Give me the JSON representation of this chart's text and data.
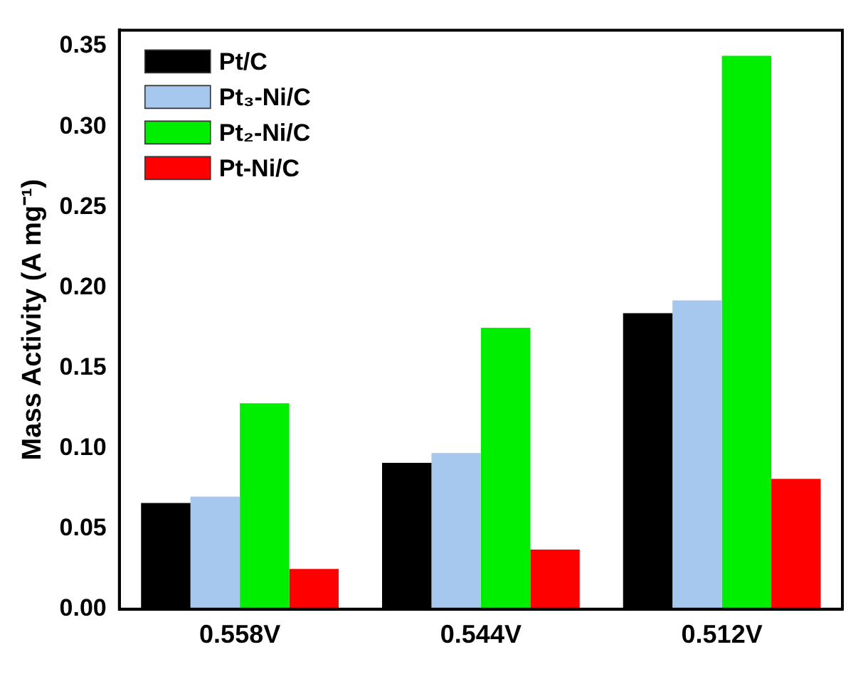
{
  "chart_data": {
    "type": "bar",
    "ylabel": "Mass Activity (A mg⁻¹)",
    "categories": [
      "0.558V",
      "0.544V",
      "0.512V"
    ],
    "series": [
      {
        "name": "Pt/C",
        "color": "#000000",
        "values": [
          0.066,
          0.091,
          0.184
        ]
      },
      {
        "name": "Pt₃-Ni/C",
        "color": "#a6c8ee",
        "values": [
          0.07,
          0.097,
          0.192
        ]
      },
      {
        "name": "Pt₂-Ni/C",
        "color": "#00ee00",
        "values": [
          0.128,
          0.175,
          0.344
        ]
      },
      {
        "name": "Pt-Ni/C",
        "color": "#ff0000",
        "values": [
          0.025,
          0.037,
          0.081
        ]
      }
    ],
    "ylim": [
      0,
      0.36
    ],
    "yticks": [
      {
        "value": 0,
        "label": "0.00"
      },
      {
        "value": 0.05,
        "label": "0.05"
      },
      {
        "value": 0.1,
        "label": "0.10"
      },
      {
        "value": 0.15,
        "label": "0.15"
      },
      {
        "value": 0.2,
        "label": "0.20"
      },
      {
        "value": 0.25,
        "label": "0.25"
      },
      {
        "value": 0.3,
        "label": "0.30"
      },
      {
        "value": 0.35,
        "label": "0.35"
      }
    ],
    "grid": false,
    "legend": "top left"
  }
}
